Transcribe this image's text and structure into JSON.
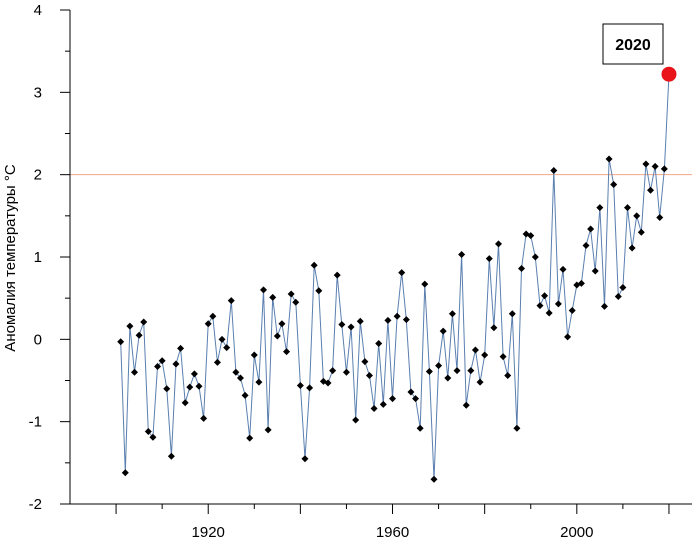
{
  "chart_data": {
    "type": "line",
    "ylabel": "Аномалия температуры °С",
    "xlabel": "",
    "xlim": [
      1890,
      2025
    ],
    "ylim": [
      -2,
      4
    ],
    "x_ticks": [
      1920,
      1960,
      2000
    ],
    "y_ticks": [
      -2,
      -1,
      0,
      1,
      2,
      3,
      4
    ],
    "reference_line": {
      "y": 2,
      "color": "#f4a582"
    },
    "colors": {
      "line": "#5a7fb0",
      "marker": "#000000",
      "highlight": "#e8141a"
    },
    "highlight": {
      "x": 2020,
      "y": 3.22,
      "label": "2020"
    },
    "series": [
      {
        "x": [
          1901,
          1902,
          1903,
          1904,
          1905,
          1906,
          1907,
          1908,
          1909,
          1910,
          1911,
          1912,
          1913,
          1914,
          1915,
          1916,
          1917,
          1918,
          1919,
          1920,
          1921,
          1922,
          1923,
          1924,
          1925,
          1926,
          1927,
          1928,
          1929,
          1930,
          1931,
          1932,
          1933,
          1934,
          1935,
          1936,
          1937,
          1938,
          1939,
          1940,
          1941,
          1942,
          1943,
          1944,
          1945,
          1946,
          1947,
          1948,
          1949,
          1950,
          1951,
          1952,
          1953,
          1954,
          1955,
          1956,
          1957,
          1958,
          1959,
          1960,
          1961,
          1962,
          1963,
          1964,
          1965,
          1966,
          1967,
          1968,
          1969,
          1970,
          1971,
          1972,
          1973,
          1974,
          1975,
          1976,
          1977,
          1978,
          1979,
          1980,
          1981,
          1982,
          1983,
          1984,
          1985,
          1986,
          1987,
          1988,
          1989,
          1990,
          1991,
          1992,
          1993,
          1994,
          1995,
          1996,
          1997,
          1998,
          1999,
          2000,
          2001,
          2002,
          2003,
          2004,
          2005,
          2006,
          2007,
          2008,
          2009,
          2010,
          2011,
          2012,
          2013,
          2014,
          2015,
          2016,
          2017,
          2018,
          2019,
          2020
        ],
        "y": [
          -0.03,
          -1.62,
          0.16,
          -0.4,
          0.05,
          0.21,
          -1.12,
          -1.19,
          -0.33,
          -0.26,
          -0.6,
          -1.42,
          -0.3,
          -0.11,
          -0.77,
          -0.58,
          -0.42,
          -0.57,
          -0.96,
          0.19,
          0.28,
          -0.28,
          0.0,
          -0.1,
          0.47,
          -0.4,
          -0.47,
          -0.68,
          -1.2,
          -0.19,
          -0.52,
          0.6,
          -1.1,
          0.51,
          0.04,
          0.19,
          -0.15,
          0.55,
          0.45,
          -0.56,
          -1.45,
          -0.59,
          0.9,
          0.59,
          -0.51,
          -0.53,
          -0.38,
          0.78,
          0.18,
          -0.4,
          0.15,
          -0.98,
          0.22,
          -0.27,
          -0.44,
          -0.84,
          -0.05,
          -0.79,
          0.23,
          -0.72,
          0.28,
          0.81,
          0.24,
          -0.64,
          -0.72,
          -1.08,
          0.67,
          -0.39,
          -1.7,
          -0.32,
          0.1,
          -0.47,
          0.31,
          -0.38,
          1.03,
          -0.8,
          -0.38,
          -0.13,
          -0.52,
          -0.19,
          0.98,
          0.14,
          1.16,
          -0.21,
          -0.44,
          0.31,
          -1.08,
          0.86,
          1.28,
          1.26,
          1.0,
          0.41,
          0.53,
          0.32,
          2.05,
          0.43,
          0.85,
          0.03,
          0.35,
          0.66,
          0.68,
          1.14,
          1.34,
          0.83,
          1.6,
          0.4,
          2.19,
          1.88,
          0.52,
          0.63,
          1.6,
          1.11,
          1.5,
          1.3,
          2.13,
          1.81,
          2.1,
          1.48,
          2.07,
          3.22
        ]
      }
    ]
  },
  "callout": {
    "label": "2020"
  }
}
